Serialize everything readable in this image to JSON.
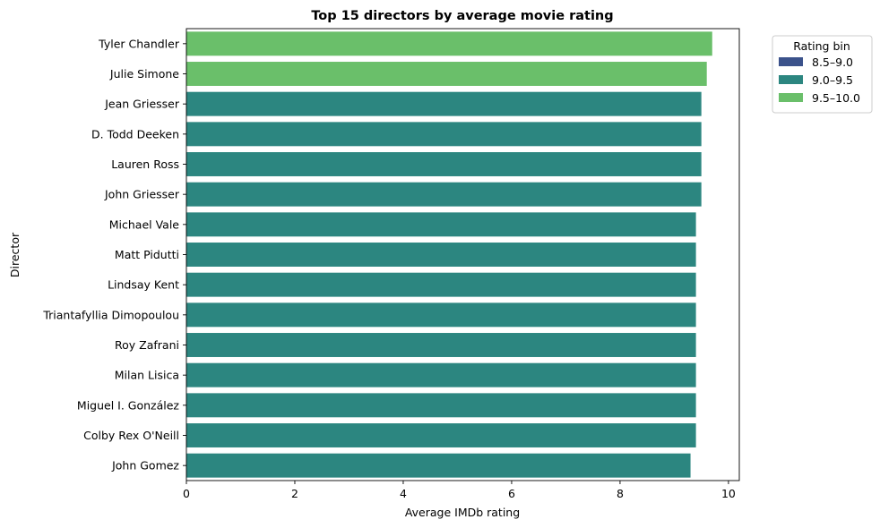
{
  "chart_data": {
    "type": "bar",
    "orientation": "horizontal",
    "title": "Top 15 directors by average movie rating",
    "xlabel": "Average IMDb rating",
    "ylabel": "Director",
    "xlim": [
      0,
      10.2
    ],
    "xticks": [
      0,
      2,
      4,
      6,
      8,
      10
    ],
    "grid": false,
    "legend": {
      "title": "Rating bin",
      "placement": "outside-top-right",
      "entries": [
        {
          "label": "8.5–9.0",
          "color": "#3b528b"
        },
        {
          "label": "9.0–9.5",
          "color": "#2c8680"
        },
        {
          "label": "9.5–10.0",
          "color": "#6abf6a"
        }
      ]
    },
    "categories": [
      "Tyler Chandler",
      "Julie Simone",
      "Jean Griesser",
      "D. Todd Deeken",
      "Lauren Ross",
      "John Griesser",
      "Michael Vale",
      "Matt Pidutti",
      "Lindsay Kent",
      "Triantafyllia Dimopoulou",
      "Roy Zafrani",
      "Milan Lisica",
      "Miguel I. González",
      "Colby Rex O'Neill",
      "John Gomez"
    ],
    "values": [
      9.7,
      9.6,
      9.5,
      9.5,
      9.5,
      9.5,
      9.4,
      9.4,
      9.4,
      9.4,
      9.4,
      9.4,
      9.4,
      9.4,
      9.3
    ],
    "bins": [
      "9.5–10.0",
      "9.5–10.0",
      "9.0–9.5",
      "9.0–9.5",
      "9.0–9.5",
      "9.0–9.5",
      "9.0–9.5",
      "9.0–9.5",
      "9.0–9.5",
      "9.0–9.5",
      "9.0–9.5",
      "9.0–9.5",
      "9.0–9.5",
      "9.0–9.5",
      "9.0–9.5"
    ]
  }
}
